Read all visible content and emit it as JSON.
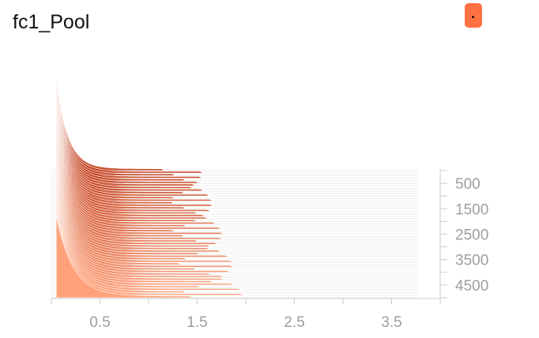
{
  "title": "fc1_Pool",
  "menu_button": {
    "label": "•",
    "color": "#ff7043"
  },
  "chart_data": {
    "type": "ridgeline_histogram",
    "title": "fc1_Pool",
    "x_ticks": [
      0.5,
      1.5,
      2.5,
      3.5
    ],
    "x_tick_labels": [
      "0.5",
      "1.5",
      "2.5",
      "3.5"
    ],
    "xlim": [
      0,
      4
    ],
    "y_ticks": [
      500,
      1500,
      2500,
      3500,
      4500
    ],
    "y_tick_labels": [
      "500",
      "1500",
      "2500",
      "3500",
      "4500"
    ],
    "steps": {
      "first": 0,
      "last": 5000,
      "interval": 100
    },
    "series_shape": {
      "peak_x": 0.05,
      "peak_height_first": 1.0,
      "peak_height_last": 0.9,
      "tail_extent_first": 0.9,
      "tail_extent_last": 2.0
    },
    "colors": {
      "oldest": "#c1401f",
      "newest": "#ffa27a",
      "band": "#f2f2f2",
      "axis": "#cccccc",
      "tick_text": "#9e9e9e"
    }
  }
}
